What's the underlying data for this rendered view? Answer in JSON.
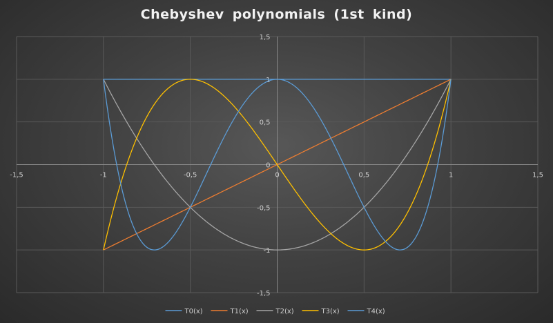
{
  "chart_data": {
    "type": "scatter",
    "title": "Chebyshev polynomials (1st kind)",
    "xlabel": "",
    "ylabel": "",
    "xlim": [
      -1.5,
      1.5
    ],
    "ylim": [
      -1.5,
      1.5
    ],
    "x_ticks": [
      "-1,5",
      "-1",
      "-0,5",
      "0",
      "0,5",
      "1",
      "1,5"
    ],
    "y_ticks": [
      "1,5",
      "1",
      "0,5",
      "0",
      "-0,5",
      "-1",
      "-1,5"
    ],
    "grid": true,
    "legend_position": "bottom",
    "series": [
      {
        "name": "T0(x)",
        "color": "#5b9bd5",
        "x_range": [
          -1,
          1
        ],
        "formula": "T0(x) = 1"
      },
      {
        "name": "T1(x)",
        "color": "#ed7d31",
        "x_range": [
          -1,
          1
        ],
        "formula": "T1(x) = x"
      },
      {
        "name": "T2(x)",
        "color": "#a5a5a5",
        "x_range": [
          -1,
          1
        ],
        "formula": "T2(x) = 2x^2 - 1"
      },
      {
        "name": "T3(x)",
        "color": "#ffc000",
        "x_range": [
          -1,
          1
        ],
        "formula": "T3(x) = 4x^3 - 3x"
      },
      {
        "name": "T4(x)",
        "color": "#5b9bd5",
        "x_range": [
          -1,
          1
        ],
        "formula": "T4(x) = 8x^4 - 8x^2 + 1"
      }
    ]
  }
}
